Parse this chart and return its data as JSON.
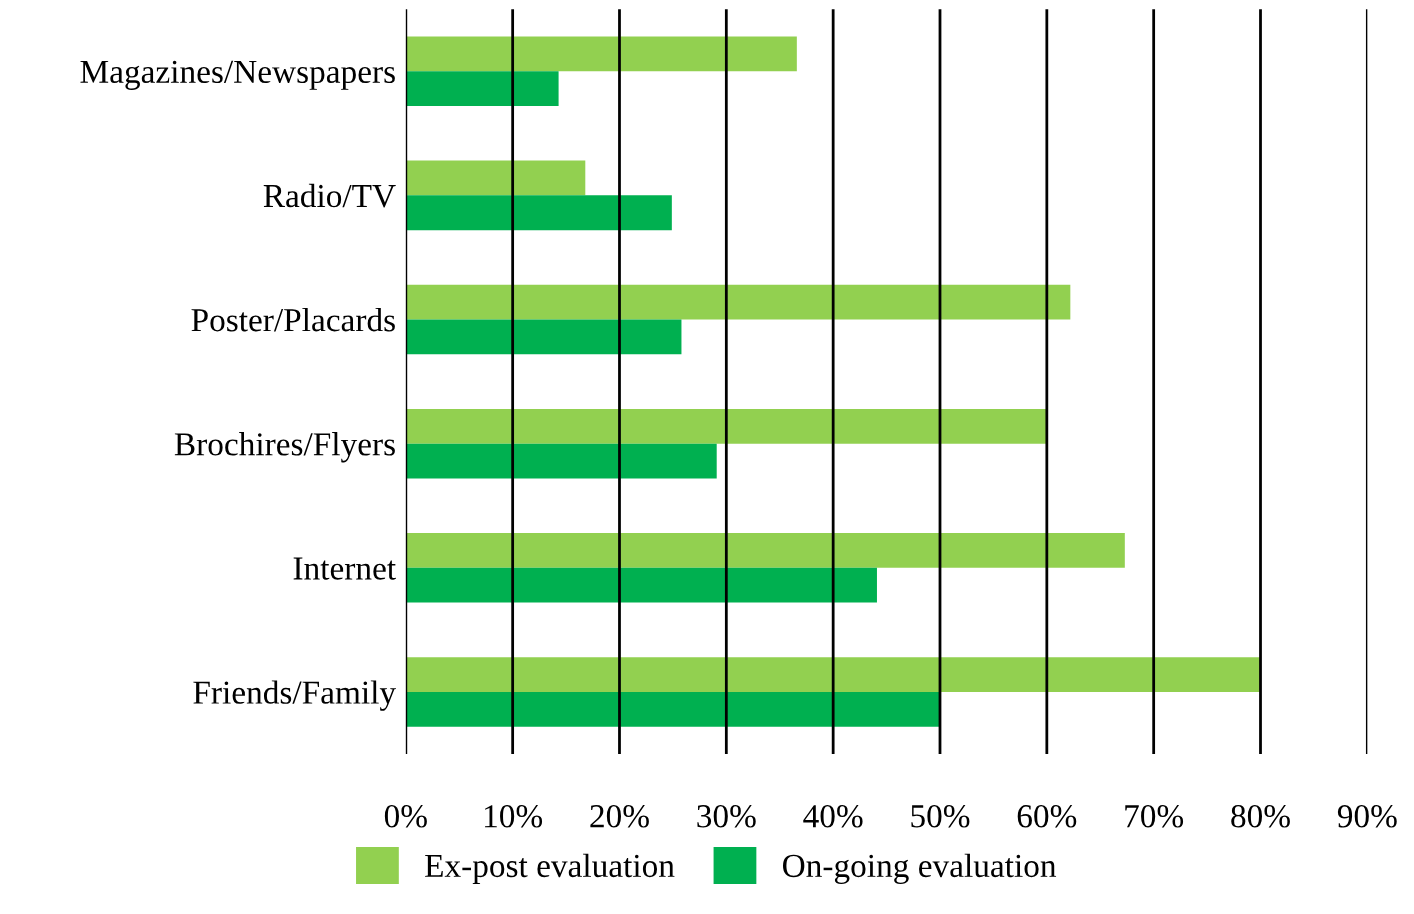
{
  "chart_data": {
    "type": "bar",
    "orientation": "horizontal",
    "categories": [
      "Magazines/Newspapers",
      "Radio/TV",
      "Poster/Placards",
      "Brochires/Flyers",
      "Internet",
      "Friends/Family"
    ],
    "series": [
      {
        "name": "Ex-post evaluation",
        "color": "#92d050",
        "values": [
          36.6,
          16.8,
          62.2,
          60,
          67.3,
          80
        ]
      },
      {
        "name": "On-going evaluation",
        "color": "#00b050",
        "values": [
          14.3,
          24.9,
          25.8,
          29.1,
          44.1,
          50
        ]
      }
    ],
    "xlim": [
      0,
      90
    ],
    "xticks": [
      {
        "value": 0,
        "label": "0%"
      },
      {
        "value": 10,
        "label": "10%"
      },
      {
        "value": 20,
        "label": "20%"
      },
      {
        "value": 30,
        "label": "30%"
      },
      {
        "value": 40,
        "label": "40%"
      },
      {
        "value": 50,
        "label": "50%"
      },
      {
        "value": 60,
        "label": "60%"
      },
      {
        "value": 70,
        "label": "70%"
      },
      {
        "value": 80,
        "label": "80%"
      },
      {
        "value": 90,
        "label": "90%"
      }
    ],
    "grid": "x",
    "legend": "bottom"
  }
}
